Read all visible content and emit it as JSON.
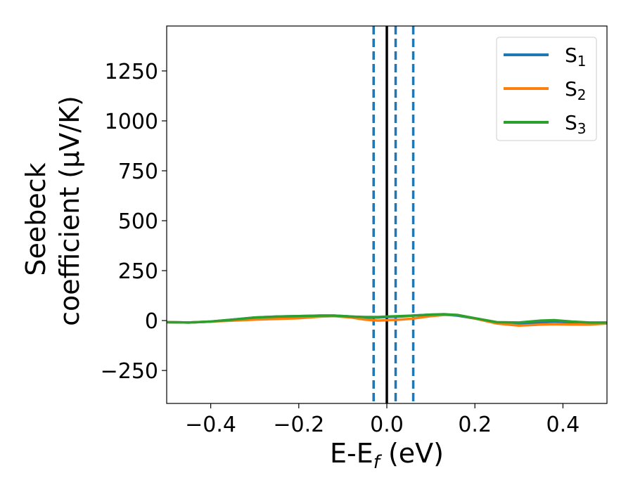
{
  "chart_data": {
    "type": "line",
    "xlabel_main": "E-E",
    "xlabel_sub": "f",
    "xlabel_unit": " (eV)",
    "ylabel_line1": "Seebeck",
    "ylabel_line2": "coefficient  (μV/K)",
    "xlim": [
      -0.5,
      0.5
    ],
    "ylim": [
      -415,
      1475
    ],
    "x_ticks": [
      -0.4,
      -0.2,
      0.0,
      0.2,
      0.4
    ],
    "x_tick_labels": [
      "−0.4",
      "−0.2",
      "0.0",
      "0.2",
      "0.4"
    ],
    "y_ticks": [
      -250,
      0,
      250,
      500,
      750,
      1000,
      1250
    ],
    "y_tick_labels": [
      "−250",
      "0",
      "250",
      "500",
      "750",
      "1000",
      "1250"
    ],
    "grid": false,
    "legend_position": "top-right",
    "series": [
      {
        "name": "S",
        "subscript": "1",
        "color": "#1f77b4",
        "x": [
          -0.5,
          -0.45,
          -0.4,
          -0.35,
          -0.3,
          -0.25,
          -0.2,
          -0.15,
          -0.12,
          -0.08,
          -0.05,
          -0.02,
          0.0,
          0.03,
          0.06,
          0.1,
          0.13,
          0.16,
          0.2,
          0.25,
          0.3,
          0.35,
          0.38,
          0.42,
          0.46,
          0.5
        ],
        "y": [
          -8,
          -10,
          -5,
          5,
          15,
          20,
          22,
          25,
          25,
          20,
          15,
          15,
          18,
          20,
          25,
          30,
          30,
          25,
          10,
          -10,
          -18,
          -10,
          -5,
          -10,
          -15,
          -15
        ]
      },
      {
        "name": "S",
        "subscript": "2",
        "color": "#ff7f0e",
        "x": [
          -0.5,
          -0.45,
          -0.4,
          -0.35,
          -0.3,
          -0.25,
          -0.2,
          -0.15,
          -0.12,
          -0.08,
          -0.05,
          -0.02,
          0.0,
          0.03,
          0.06,
          0.1,
          0.13,
          0.16,
          0.2,
          0.25,
          0.3,
          0.35,
          0.38,
          0.42,
          0.46,
          0.5
        ],
        "y": [
          -8,
          -10,
          -5,
          0,
          5,
          8,
          12,
          20,
          22,
          15,
          5,
          0,
          2,
          5,
          10,
          22,
          28,
          28,
          10,
          -15,
          -25,
          -20,
          -18,
          -20,
          -20,
          -15
        ]
      },
      {
        "name": "S",
        "subscript": "3",
        "color": "#2ca02c",
        "x": [
          -0.5,
          -0.45,
          -0.4,
          -0.35,
          -0.3,
          -0.25,
          -0.2,
          -0.15,
          -0.12,
          -0.08,
          -0.05,
          -0.02,
          0.0,
          0.03,
          0.06,
          0.1,
          0.13,
          0.16,
          0.2,
          0.25,
          0.3,
          0.35,
          0.38,
          0.42,
          0.46,
          0.5
        ],
        "y": [
          -8,
          -10,
          -5,
          5,
          15,
          20,
          22,
          25,
          25,
          20,
          18,
          18,
          20,
          22,
          25,
          30,
          32,
          28,
          12,
          -8,
          -10,
          0,
          2,
          -5,
          -10,
          -10
        ]
      }
    ],
    "vlines": [
      {
        "x": -0.03,
        "style": "dashed",
        "color": "#1f77b4"
      },
      {
        "x": 0.0,
        "style": "solid",
        "color": "#000000"
      },
      {
        "x": 0.02,
        "style": "dashed",
        "color": "#1f77b4"
      },
      {
        "x": 0.06,
        "style": "dashed",
        "color": "#1f77b4"
      }
    ]
  }
}
